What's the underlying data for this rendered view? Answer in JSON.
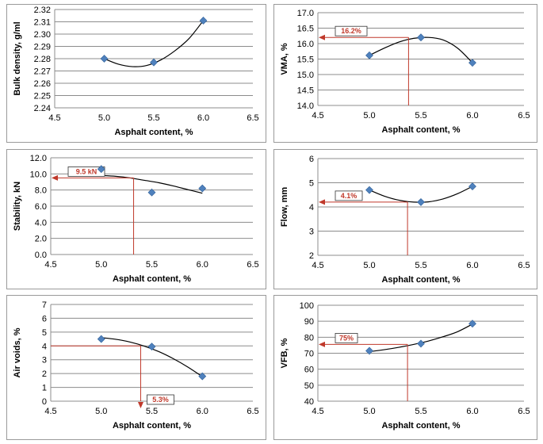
{
  "charts": [
    {
      "type": "scatter",
      "xlabel": "Asphalt content, %",
      "ylabel": "Bulk density, g/ml",
      "xlim": [
        4.5,
        6.5
      ],
      "xstep": 0.5,
      "ylim": [
        2.24,
        2.32
      ],
      "ystep": 0.01,
      "ydec": 2,
      "points": [
        {
          "x": 5.0,
          "y": 2.28
        },
        {
          "x": 5.5,
          "y": 2.277
        },
        {
          "x": 6.0,
          "y": 2.311
        }
      ],
      "trend": [
        2.28,
        2.2755,
        2.2735,
        2.2745,
        2.279,
        2.2865,
        2.2965,
        2.311
      ],
      "callout": null
    },
    {
      "type": "scatter",
      "xlabel": "Asphalt content, %",
      "ylabel": "VMA, %",
      "xlim": [
        4.5,
        6.5
      ],
      "xstep": 0.5,
      "ylim": [
        14.0,
        17.0
      ],
      "ystep": 0.5,
      "ydec": 1,
      "points": [
        {
          "x": 5.0,
          "y": 15.62
        },
        {
          "x": 5.5,
          "y": 16.2
        },
        {
          "x": 6.0,
          "y": 15.38
        }
      ],
      "trend": [
        15.62,
        15.85,
        16.05,
        16.17,
        16.2,
        16.12,
        15.85,
        15.38
      ],
      "callout": {
        "label": "16.2%",
        "x": 5.38,
        "y": 16.2,
        "arrow": "left"
      }
    },
    {
      "type": "scatter",
      "xlabel": "Asphalt content, %",
      "ylabel": "Stability, kN",
      "xlim": [
        4.5,
        6.5
      ],
      "xstep": 0.5,
      "ylim": [
        0.0,
        12.0
      ],
      "ystep": 2.0,
      "ydec": 1,
      "points": [
        {
          "x": 5.0,
          "y": 10.6
        },
        {
          "x": 5.5,
          "y": 7.7
        },
        {
          "x": 6.0,
          "y": 8.2
        }
      ],
      "trend": [
        9.8,
        9.7,
        9.5,
        9.2,
        8.9,
        8.5,
        8.05,
        7.6
      ],
      "callout": {
        "label": "9.5 kN",
        "x": 5.32,
        "y": 9.5,
        "arrow": "left"
      }
    },
    {
      "type": "scatter",
      "xlabel": "Asphalt content, %",
      "ylabel": "Flow, mm",
      "xlim": [
        4.5,
        6.5
      ],
      "xstep": 0.5,
      "ylim": [
        2,
        6
      ],
      "ystep": 1,
      "ydec": 0,
      "points": [
        {
          "x": 5.0,
          "y": 4.7
        },
        {
          "x": 5.5,
          "y": 4.2
        },
        {
          "x": 6.0,
          "y": 4.85
        }
      ],
      "trend": [
        4.7,
        4.45,
        4.28,
        4.2,
        4.21,
        4.33,
        4.55,
        4.85
      ],
      "callout": {
        "label": "4.1%",
        "x": 5.37,
        "y": 4.2,
        "arrow": "left"
      }
    },
    {
      "type": "scatter",
      "xlabel": "Asphalt content, %",
      "ylabel": "Air voids, %",
      "xlim": [
        4.5,
        6.5
      ],
      "xstep": 0.5,
      "ylim": [
        0,
        7
      ],
      "ystep": 1,
      "ydec": 0,
      "points": [
        {
          "x": 5.0,
          "y": 4.5
        },
        {
          "x": 5.5,
          "y": 3.95
        },
        {
          "x": 6.0,
          "y": 1.8
        }
      ],
      "trend": [
        4.6,
        4.48,
        4.28,
        3.98,
        3.58,
        3.07,
        2.47,
        1.78
      ],
      "callout": {
        "label": "5.3%",
        "x": 5.39,
        "y": 4.0,
        "arrow": "down"
      }
    },
    {
      "type": "scatter",
      "xlabel": "Asphalt content, %",
      "ylabel": "VFB, %",
      "xlim": [
        4.5,
        6.5
      ],
      "xstep": 0.5,
      "ylim": [
        40,
        100
      ],
      "ystep": 10,
      "ydec": 0,
      "points": [
        {
          "x": 5.0,
          "y": 71.5
        },
        {
          "x": 5.5,
          "y": 76.0
        },
        {
          "x": 6.0,
          "y": 88.5
        }
      ],
      "trend": [
        71,
        72.2,
        73.7,
        75.5,
        77.6,
        80.3,
        83.5,
        88.2
      ],
      "callout": {
        "label": "75%",
        "x": 5.37,
        "y": 75.5,
        "arrow": "left"
      }
    }
  ],
  "chart_data": [
    {
      "type": "scatter",
      "xlabel": "Asphalt content, %",
      "ylabel": "Bulk density, g/ml",
      "xlim": [
        4.5,
        6.5
      ],
      "ylim": [
        2.24,
        2.32
      ],
      "x": [
        5.0,
        5.5,
        6.0
      ],
      "y": [
        2.28,
        2.277,
        2.311
      ],
      "grid": true
    },
    {
      "type": "scatter",
      "xlabel": "Asphalt content, %",
      "ylabel": "VMA, %",
      "xlim": [
        4.5,
        6.5
      ],
      "ylim": [
        14.0,
        17.0
      ],
      "x": [
        5.0,
        5.5,
        6.0
      ],
      "y": [
        15.62,
        16.2,
        15.38
      ],
      "annotations": [
        "16.2%"
      ],
      "grid": true
    },
    {
      "type": "scatter",
      "xlabel": "Asphalt content, %",
      "ylabel": "Stability, kN",
      "xlim": [
        4.5,
        6.5
      ],
      "ylim": [
        0.0,
        12.0
      ],
      "x": [
        5.0,
        5.5,
        6.0
      ],
      "y": [
        10.6,
        7.7,
        8.2
      ],
      "annotations": [
        "9.5 kN"
      ],
      "grid": true
    },
    {
      "type": "scatter",
      "xlabel": "Asphalt content, %",
      "ylabel": "Flow, mm",
      "xlim": [
        4.5,
        6.5
      ],
      "ylim": [
        2,
        6
      ],
      "x": [
        5.0,
        5.5,
        6.0
      ],
      "y": [
        4.7,
        4.2,
        4.85
      ],
      "annotations": [
        "4.1%"
      ],
      "grid": true
    },
    {
      "type": "scatter",
      "xlabel": "Asphalt content, %",
      "ylabel": "Air voids, %",
      "xlim": [
        4.5,
        6.5
      ],
      "ylim": [
        0,
        7
      ],
      "x": [
        5.0,
        5.5,
        6.0
      ],
      "y": [
        4.5,
        3.95,
        1.8
      ],
      "annotations": [
        "5.3%"
      ],
      "grid": true
    },
    {
      "type": "scatter",
      "xlabel": "Asphalt content, %",
      "ylabel": "VFB, %",
      "xlim": [
        4.5,
        6.5
      ],
      "ylim": [
        40,
        100
      ],
      "x": [
        5.0,
        5.5,
        6.0
      ],
      "y": [
        71.5,
        76.0,
        88.5
      ],
      "annotations": [
        "75%"
      ],
      "grid": true
    }
  ],
  "colors": {
    "marker": "#4f81bd",
    "marker_stroke": "#2f5f98",
    "trend": "#000000",
    "grid": "#8c8c8c",
    "callout": "#c0392b"
  }
}
